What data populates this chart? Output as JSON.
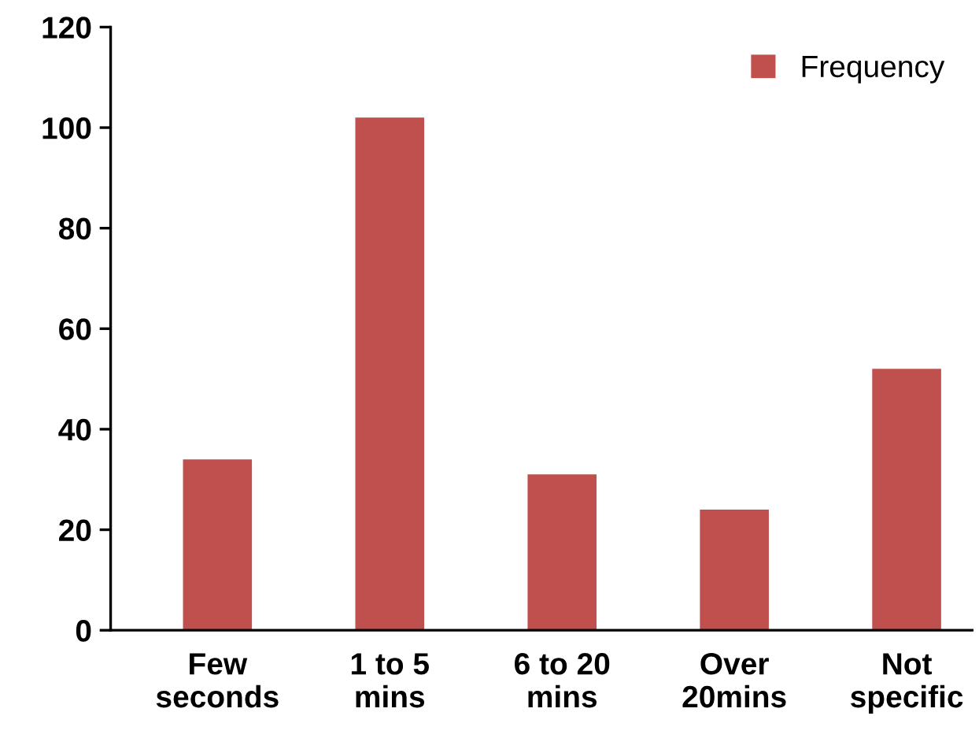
{
  "chart_data": {
    "type": "bar",
    "categories": [
      "Few\nseconds",
      "1 to 5\nmins",
      "6 to 20\nmins",
      "Over\n20mins",
      "Not\nspecific"
    ],
    "series": [
      {
        "name": "Frequency",
        "color": "#c0504d",
        "values": [
          34,
          102,
          31,
          24,
          52
        ]
      }
    ],
    "ylim": [
      0,
      120
    ],
    "yticks": [
      0,
      20,
      40,
      60,
      80,
      100,
      120
    ],
    "grid": false,
    "legend": "top right"
  }
}
